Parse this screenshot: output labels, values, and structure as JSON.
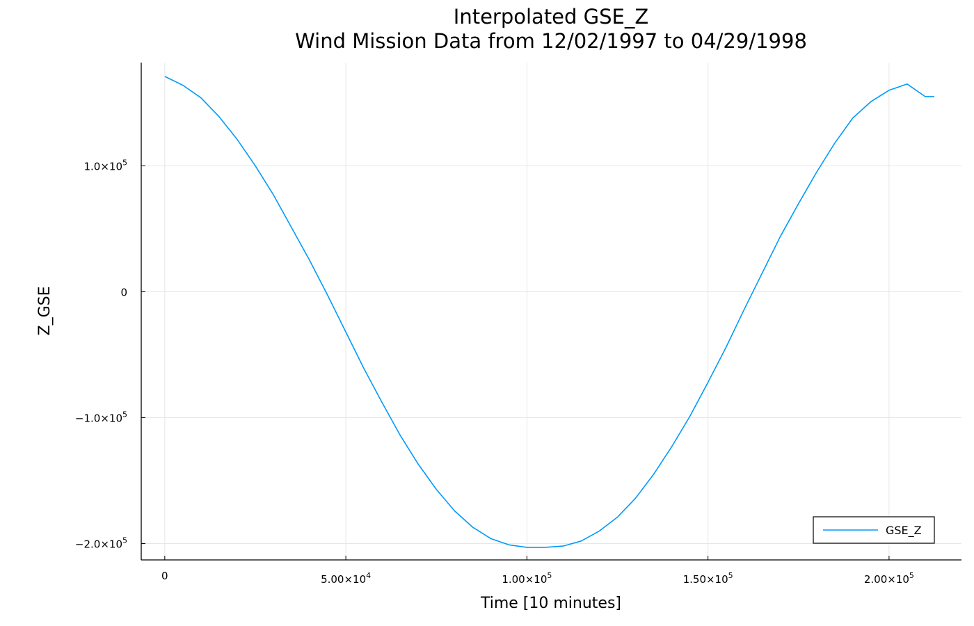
{
  "chart_data": {
    "type": "line",
    "title": "Interpolated GSE_Z",
    "subtitle": "Wind Mission Data from 12/02/1997 to 04/29/1998",
    "xlabel": "Time [10 minutes]",
    "ylabel": "Z_GSE",
    "xlim": [
      -6500,
      220000
    ],
    "ylim": [
      -213000,
      182000
    ],
    "grid": true,
    "legend_position": "bottom-right",
    "x_ticks": [
      {
        "value": 0,
        "mantissa": "0",
        "exp": ""
      },
      {
        "value": 50000,
        "mantissa": "5.00×10",
        "exp": "4"
      },
      {
        "value": 100000,
        "mantissa": "1.00×10",
        "exp": "5"
      },
      {
        "value": 150000,
        "mantissa": "1.50×10",
        "exp": "5"
      },
      {
        "value": 200000,
        "mantissa": "2.00×10",
        "exp": "5"
      }
    ],
    "y_ticks": [
      {
        "value": 100000,
        "mantissa": "1.0×10",
        "exp": "5"
      },
      {
        "value": 0,
        "mantissa": "0",
        "exp": ""
      },
      {
        "value": -100000,
        "mantissa": "−1.0×10",
        "exp": "5"
      },
      {
        "value": -200000,
        "mantissa": "−2.0×10",
        "exp": "5"
      }
    ],
    "series": [
      {
        "name": "GSE_Z",
        "color": "#009AFA",
        "x": [
          0,
          5000,
          10000,
          15000,
          20000,
          25000,
          30000,
          35000,
          40000,
          45000,
          50000,
          55000,
          60000,
          65000,
          70000,
          75000,
          80000,
          85000,
          90000,
          95000,
          100000,
          105000,
          110000,
          115000,
          120000,
          125000,
          130000,
          135000,
          140000,
          145000,
          150000,
          155000,
          160000,
          165000,
          170000,
          175000,
          180000,
          185000,
          190000,
          195000,
          200000,
          205000,
          210000,
          212500
        ],
        "y": [
          171000,
          164000,
          154000,
          139000,
          121000,
          100000,
          77000,
          51000,
          25000,
          -3000,
          -32000,
          -61000,
          -88000,
          -114000,
          -137000,
          -157000,
          -174000,
          -187000,
          -196000,
          -201000,
          -203000,
          -203000,
          -202000,
          -198000,
          -190000,
          -179000,
          -164000,
          -145000,
          -123000,
          -99000,
          -72000,
          -44000,
          -14000,
          15000,
          44000,
          70000,
          95000,
          118000,
          138000,
          151000,
          160000,
          165000,
          155000,
          155000
        ]
      }
    ]
  }
}
